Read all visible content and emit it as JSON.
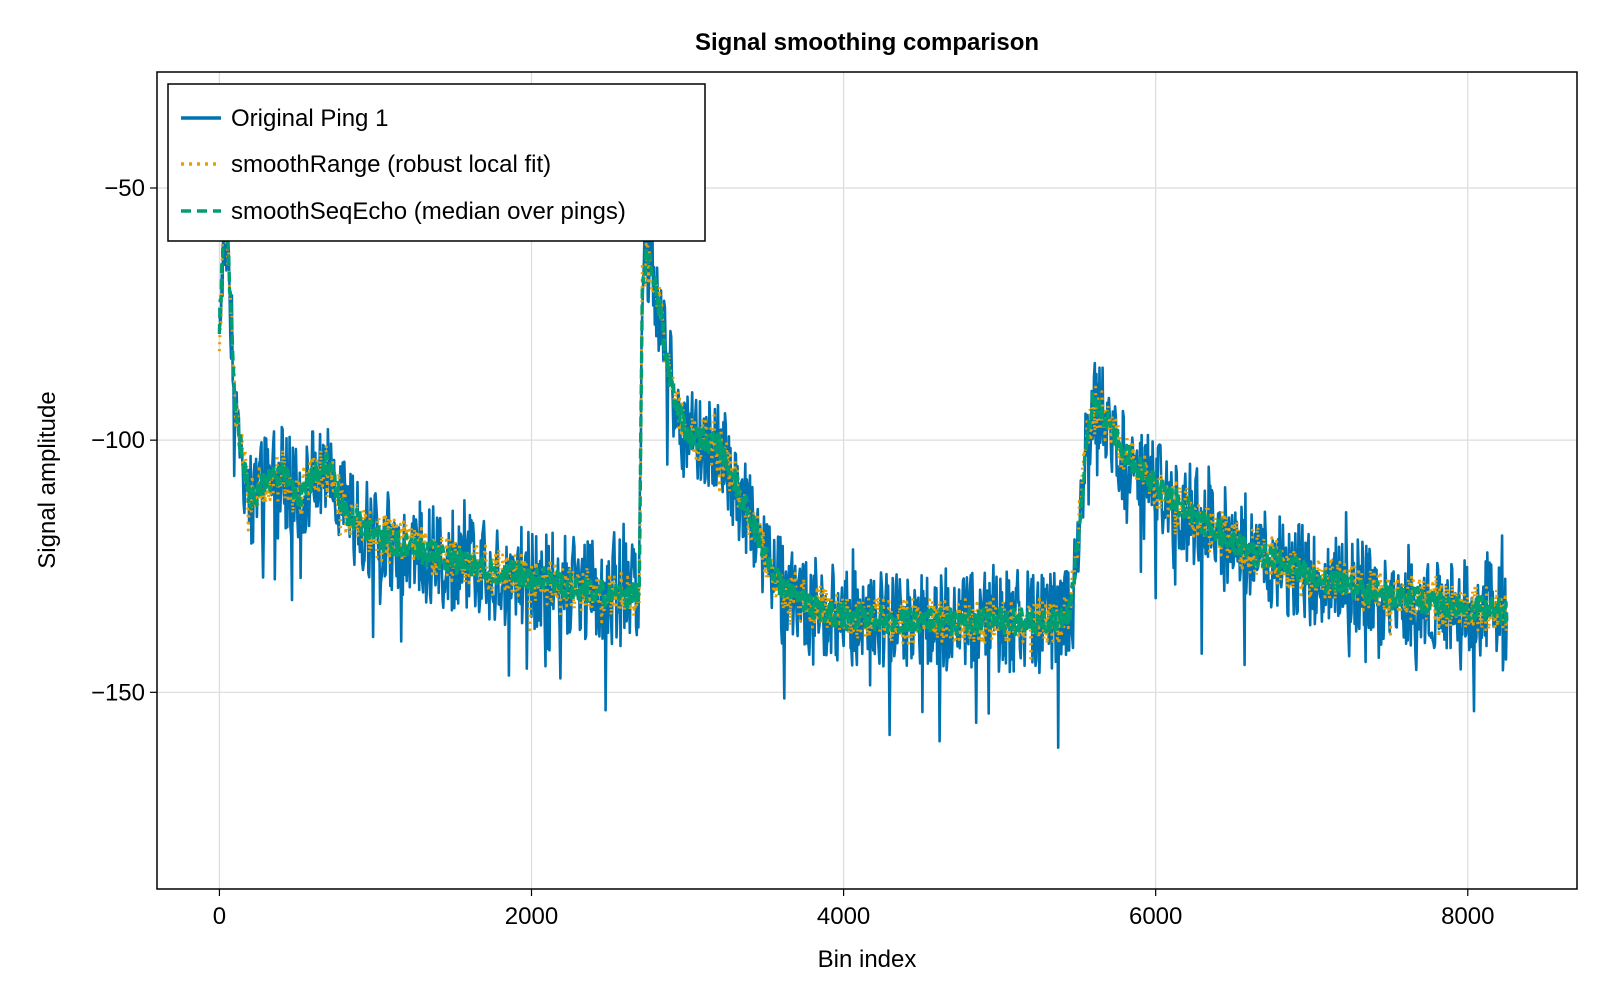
{
  "chart_data": {
    "type": "line",
    "title": "Signal smoothing comparison",
    "xlabel": "Bin index",
    "ylabel": "Signal amplitude",
    "xlim": [
      -400,
      8700
    ],
    "ylim": [
      -189,
      -27
    ],
    "xticks": [
      0,
      2000,
      4000,
      6000,
      8000
    ],
    "xtick_labels": [
      "0",
      "2000",
      "4000",
      "6000",
      "8000"
    ],
    "yticks": [
      -50,
      -100,
      -150
    ],
    "ytick_labels": [
      "−50",
      "−100",
      "−150"
    ],
    "grid": true,
    "legend_position": "top-left",
    "x_range": [
      0,
      8250
    ],
    "anchors": {
      "x": [
        0,
        30,
        60,
        100,
        150,
        200,
        300,
        400,
        500,
        600,
        700,
        800,
        1000,
        1200,
        1500,
        1800,
        2100,
        2400,
        2600,
        2690,
        2710,
        2740,
        2800,
        2900,
        3000,
        3100,
        3200,
        3300,
        3400,
        3500,
        3600,
        3800,
        4000,
        4500,
        5000,
        5400,
        5450,
        5500,
        5550,
        5600,
        5700,
        5800,
        6000,
        6300,
        6600,
        7000,
        7500,
        8000,
        8250
      ],
      "smooth": [
        -78,
        -55,
        -65,
        -92,
        -104,
        -112,
        -108,
        -106,
        -112,
        -107,
        -105,
        -114,
        -119,
        -121,
        -124,
        -126,
        -128,
        -130,
        -131,
        -130,
        -70,
        -63,
        -70,
        -90,
        -100,
        -100,
        -101,
        -108,
        -115,
        -123,
        -129,
        -133,
        -135,
        -136,
        -136,
        -136,
        -134,
        -120,
        -103,
        -92,
        -97,
        -103,
        -109,
        -116,
        -122,
        -127,
        -131,
        -133,
        -134
      ]
    },
    "series": [
      {
        "name": "Original Ping 1",
        "color": "#0072b2",
        "dash": "solid",
        "noise": 10,
        "spike_rate": 0.08,
        "spike_depth": 18
      },
      {
        "name": "smoothRange (robust local fit)",
        "color": "#e69f00",
        "dash": "dotted",
        "noise": 4.5,
        "spike_rate": 0.03,
        "spike_depth": 6
      },
      {
        "name": "smoothSeqEcho (median over pings)",
        "color": "#009e73",
        "dash": "dashed",
        "noise": 2.6,
        "spike_rate": 0.0,
        "spike_depth": 0
      }
    ]
  }
}
